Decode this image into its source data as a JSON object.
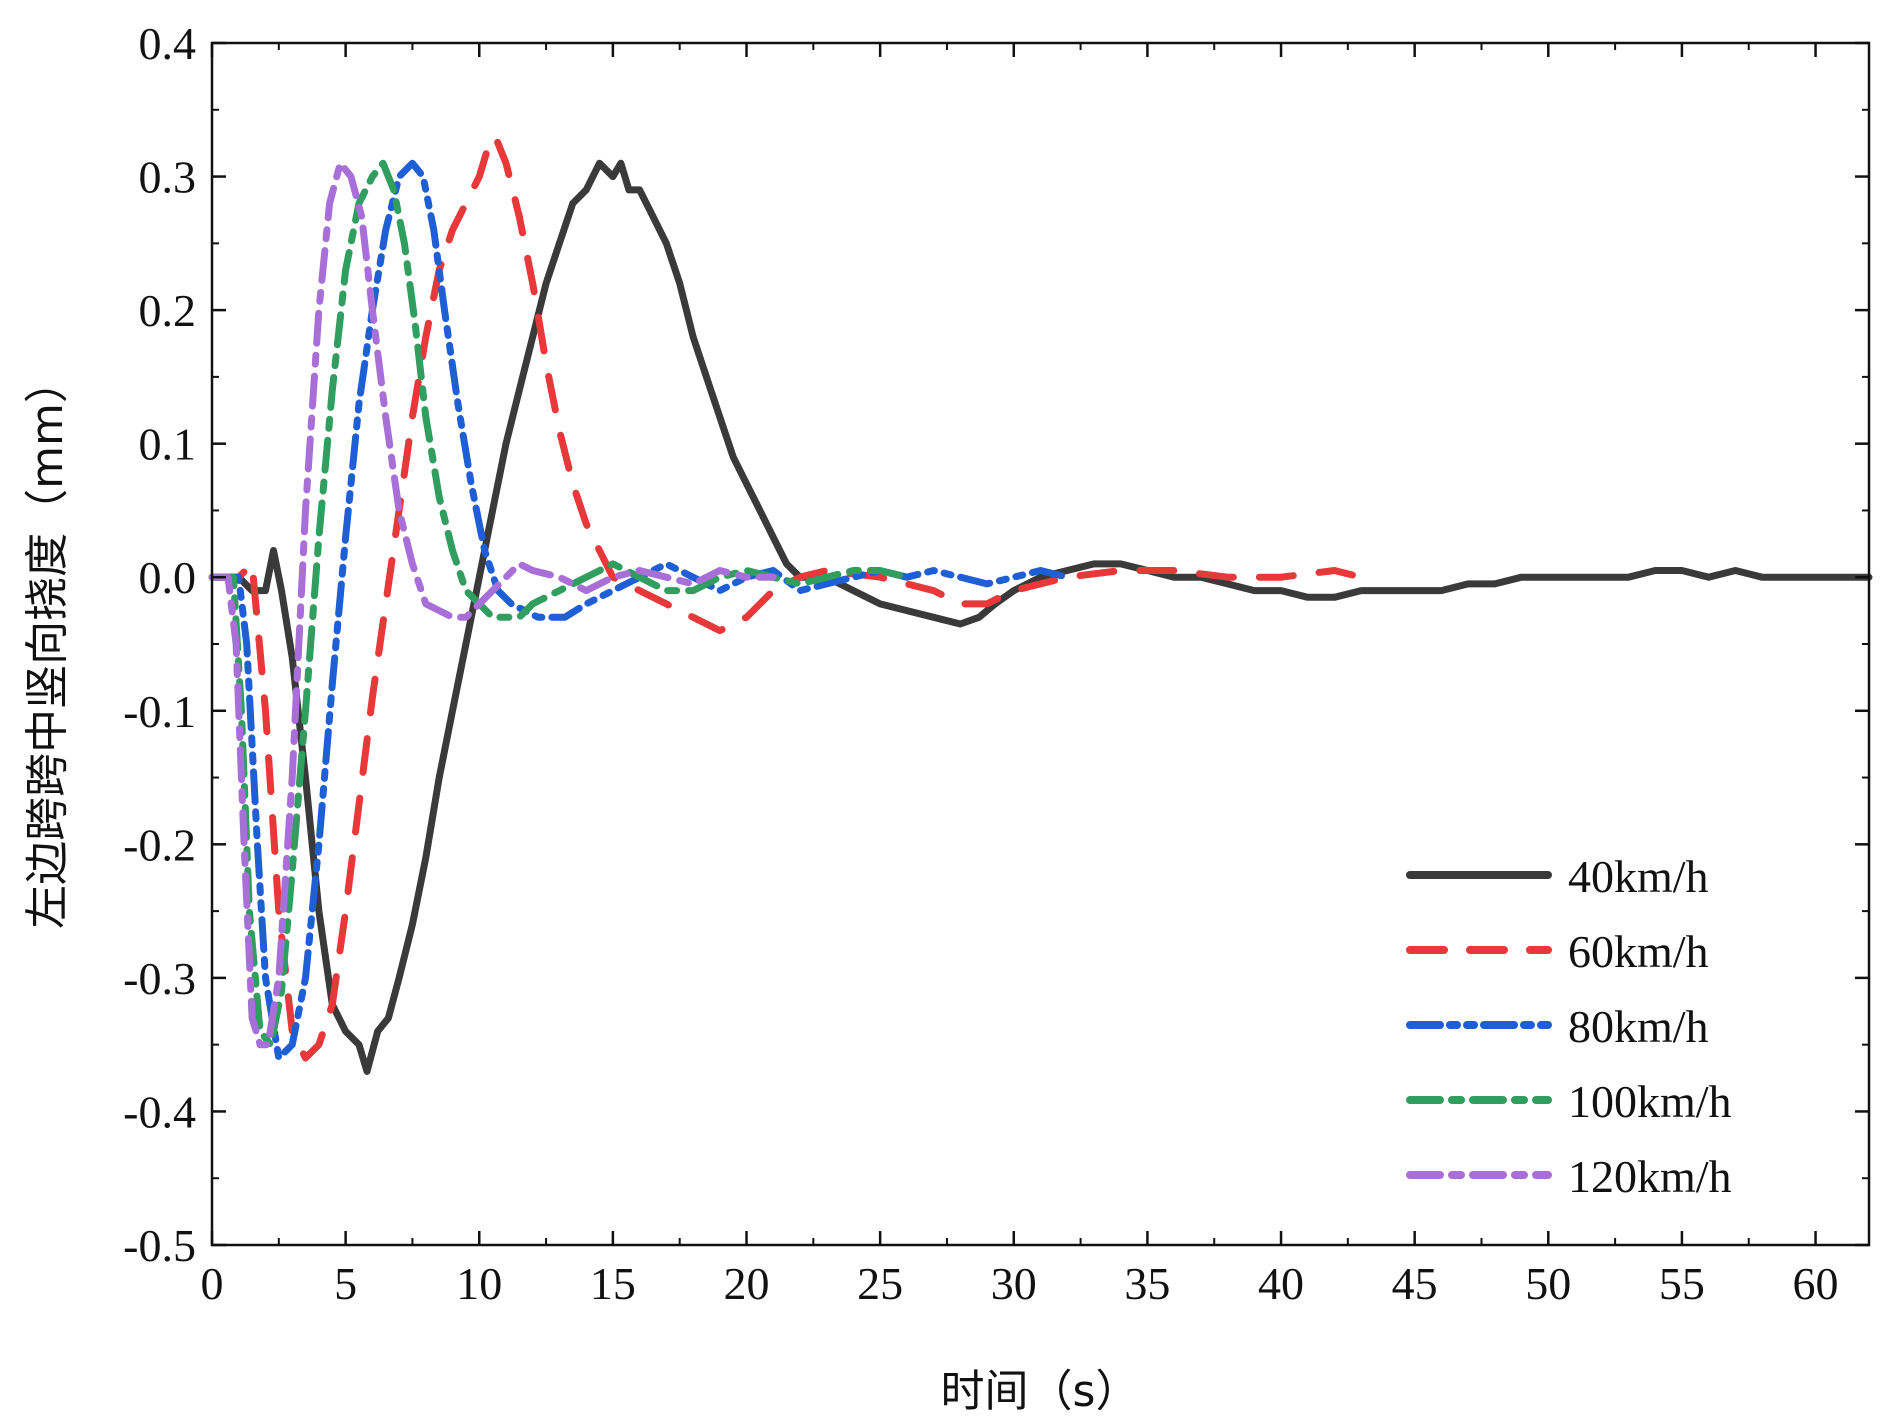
{
  "chart_data": {
    "type": "line",
    "title": "",
    "xlabel": "时间（s）",
    "ylabel": "左边跨跨中竖向挠度（mm）",
    "xlim": [
      0,
      62
    ],
    "ylim": [
      -0.5,
      0.4
    ],
    "xticks": [
      0,
      5,
      10,
      15,
      20,
      25,
      30,
      35,
      40,
      45,
      50,
      55,
      60
    ],
    "xtick_labels": [
      "0",
      "5",
      "10",
      "15",
      "20",
      "25",
      "30",
      "35",
      "40",
      "45",
      "50",
      "55",
      "60"
    ],
    "yticks": [
      -0.5,
      -0.4,
      -0.3,
      -0.2,
      -0.1,
      0.0,
      0.1,
      0.2,
      0.3,
      0.4
    ],
    "ytick_labels": [
      "-0.5",
      "-0.4",
      "-0.3",
      "-0.2",
      "-0.1",
      "0.0",
      "0.1",
      "0.2",
      "0.3",
      "0.4"
    ],
    "grid": false,
    "legend_position": "bottom-right",
    "series": [
      {
        "name": "40km/h",
        "color": "#3a3a3a",
        "dash": "solid",
        "x": [
          0,
          1.0,
          1.5,
          2.0,
          2.3,
          2.6,
          3.0,
          3.5,
          4.0,
          4.5,
          5.0,
          5.5,
          5.8,
          6.2,
          6.6,
          7.0,
          7.5,
          8.0,
          8.5,
          9.0,
          9.5,
          10.0,
          10.5,
          11.0,
          11.5,
          12.0,
          12.5,
          13.0,
          13.5,
          14.0,
          14.5,
          15.0,
          15.3,
          15.6,
          16.0,
          16.5,
          17.0,
          17.5,
          18.0,
          18.5,
          19.0,
          19.5,
          20.0,
          20.5,
          21.0,
          21.5,
          22.0,
          22.5,
          23.0,
          24.0,
          25.0,
          26.0,
          27.0,
          28.0,
          28.7,
          29.3,
          30.0,
          31.0,
          32.0,
          33.0,
          34.0,
          35.0,
          36.0,
          37.0,
          38.0,
          39.0,
          40.0,
          41.0,
          42.0,
          43.0,
          44.0,
          45.0,
          46.0,
          47.0,
          48.0,
          49.0,
          50.0,
          51.0,
          52.0,
          53.0,
          54.0,
          55.0,
          56.0,
          57.0,
          58.0,
          59.0,
          60.0,
          61.0,
          62.0
        ],
        "y": [
          0.0,
          0.0,
          -0.01,
          -0.01,
          0.02,
          -0.01,
          -0.06,
          -0.15,
          -0.25,
          -0.32,
          -0.34,
          -0.35,
          -0.37,
          -0.34,
          -0.33,
          -0.3,
          -0.26,
          -0.21,
          -0.15,
          -0.1,
          -0.05,
          0.0,
          0.05,
          0.1,
          0.14,
          0.18,
          0.22,
          0.25,
          0.28,
          0.29,
          0.31,
          0.3,
          0.31,
          0.29,
          0.29,
          0.27,
          0.25,
          0.22,
          0.18,
          0.15,
          0.12,
          0.09,
          0.07,
          0.05,
          0.03,
          0.01,
          0.0,
          0.0,
          0.0,
          -0.01,
          -0.02,
          -0.025,
          -0.03,
          -0.035,
          -0.03,
          -0.02,
          -0.01,
          0.0,
          0.005,
          0.01,
          0.01,
          0.005,
          0.0,
          0.0,
          -0.005,
          -0.01,
          -0.01,
          -0.015,
          -0.015,
          -0.01,
          -0.01,
          -0.01,
          -0.01,
          -0.005,
          -0.005,
          0.0,
          0.0,
          0.0,
          0.0,
          0.0,
          0.005,
          0.005,
          0.0,
          0.005,
          0.0,
          0.0,
          0.0,
          0.0,
          0.0
        ]
      },
      {
        "name": "60km/h",
        "color": "#e8383a",
        "dash": "long",
        "x": [
          0,
          1.0,
          1.5,
          2.0,
          2.5,
          3.0,
          3.5,
          4.0,
          4.5,
          5.0,
          5.5,
          6.0,
          6.5,
          7.0,
          7.5,
          8.0,
          8.5,
          9.0,
          9.5,
          10.0,
          10.3,
          10.6,
          11.0,
          11.5,
          12.0,
          12.5,
          13.0,
          13.5,
          14.0,
          14.5,
          15.0,
          15.5,
          16.0,
          17.0,
          18.0,
          19.0,
          20.0,
          21.0,
          22.0,
          23.0,
          25.0,
          27.0,
          28.0,
          29.0,
          30.0,
          32.0,
          34.0,
          36.0,
          38.0,
          40.0,
          42.0,
          43.0
        ],
        "y": [
          0.0,
          0.0,
          0.01,
          -0.1,
          -0.25,
          -0.34,
          -0.36,
          -0.35,
          -0.32,
          -0.25,
          -0.17,
          -0.09,
          -0.02,
          0.05,
          0.12,
          0.18,
          0.23,
          0.26,
          0.28,
          0.3,
          0.32,
          0.33,
          0.31,
          0.27,
          0.22,
          0.16,
          0.11,
          0.07,
          0.04,
          0.02,
          0.0,
          -0.005,
          -0.01,
          -0.02,
          -0.03,
          -0.04,
          -0.03,
          -0.01,
          0.0,
          0.005,
          0.0,
          -0.01,
          -0.02,
          -0.02,
          -0.01,
          0.0,
          0.005,
          0.005,
          0.0,
          0.0,
          0.005,
          0.0
        ]
      },
      {
        "name": "80km/h",
        "color": "#1f5fd6",
        "dash": "dash-dot-dot",
        "x": [
          0,
          1.0,
          1.3,
          1.7,
          2.0,
          2.5,
          3.0,
          3.5,
          4.0,
          4.5,
          5.0,
          5.5,
          6.0,
          6.5,
          7.0,
          7.5,
          7.9,
          8.3,
          8.7,
          9.2,
          9.7,
          10.2,
          10.7,
          11.2,
          11.7,
          12.2,
          12.7,
          13.2,
          14.0,
          15.0,
          16.0,
          17.0,
          18.0,
          19.0,
          20.0,
          21.0,
          22.0,
          23.0,
          24.0,
          25.0,
          26.0,
          27.0,
          28.0,
          29.0,
          30.0,
          31.0,
          32.0
        ],
        "y": [
          0.0,
          0.0,
          -0.05,
          -0.2,
          -0.3,
          -0.36,
          -0.35,
          -0.3,
          -0.2,
          -0.08,
          0.03,
          0.13,
          0.2,
          0.26,
          0.3,
          0.31,
          0.3,
          0.26,
          0.2,
          0.13,
          0.07,
          0.02,
          -0.01,
          -0.02,
          -0.025,
          -0.03,
          -0.03,
          -0.03,
          -0.02,
          -0.01,
          0.0,
          0.01,
          0.0,
          -0.01,
          0.0,
          0.005,
          -0.01,
          -0.005,
          0.0,
          0.005,
          0.0,
          0.005,
          0.0,
          -0.005,
          0.0,
          0.005,
          0.0
        ]
      },
      {
        "name": "100km/h",
        "color": "#2f9e5e",
        "dash": "dash-dot",
        "x": [
          0,
          0.8,
          1.1,
          1.4,
          1.8,
          2.2,
          2.6,
          3.0,
          3.5,
          4.0,
          4.5,
          5.0,
          5.5,
          6.0,
          6.4,
          6.8,
          7.2,
          7.6,
          8.0,
          8.5,
          9.0,
          9.5,
          10.0,
          10.5,
          11.0,
          11.5,
          12.0,
          13.0,
          14.0,
          15.0,
          16.0,
          17.0,
          18.0,
          19.0,
          20.0,
          21.0,
          22.0,
          23.0,
          24.0,
          25.0,
          26.0
        ],
        "y": [
          0.0,
          0.0,
          -0.1,
          -0.25,
          -0.34,
          -0.35,
          -0.31,
          -0.22,
          -0.1,
          0.03,
          0.14,
          0.23,
          0.28,
          0.3,
          0.31,
          0.29,
          0.25,
          0.19,
          0.12,
          0.06,
          0.02,
          -0.01,
          -0.02,
          -0.03,
          -0.03,
          -0.03,
          -0.02,
          -0.01,
          0.0,
          0.01,
          0.0,
          -0.01,
          -0.01,
          0.0,
          0.005,
          0.0,
          -0.005,
          0.0,
          0.005,
          0.005,
          0.0
        ]
      },
      {
        "name": "120km/h",
        "color": "#a86fd8",
        "dash": "dash-dot",
        "x": [
          0,
          0.6,
          0.9,
          1.2,
          1.5,
          1.8,
          2.1,
          2.5,
          3.0,
          3.5,
          4.0,
          4.4,
          4.8,
          5.2,
          5.6,
          6.0,
          6.5,
          7.0,
          7.5,
          8.0,
          8.5,
          9.0,
          9.5,
          10.0,
          10.5,
          11.0,
          11.5,
          12.0,
          13.0,
          14.0,
          15.0,
          16.0,
          17.0,
          18.0,
          19.0,
          20.0,
          21.0
        ],
        "y": [
          0.0,
          0.0,
          -0.05,
          -0.2,
          -0.33,
          -0.35,
          -0.35,
          -0.3,
          -0.15,
          0.05,
          0.2,
          0.28,
          0.31,
          0.3,
          0.27,
          0.2,
          0.12,
          0.05,
          0.01,
          -0.02,
          -0.025,
          -0.03,
          -0.03,
          -0.02,
          -0.01,
          0.0,
          0.01,
          0.005,
          0.0,
          -0.01,
          0.0,
          0.005,
          0.0,
          -0.005,
          0.005,
          0.0,
          0.0
        ]
      }
    ]
  }
}
